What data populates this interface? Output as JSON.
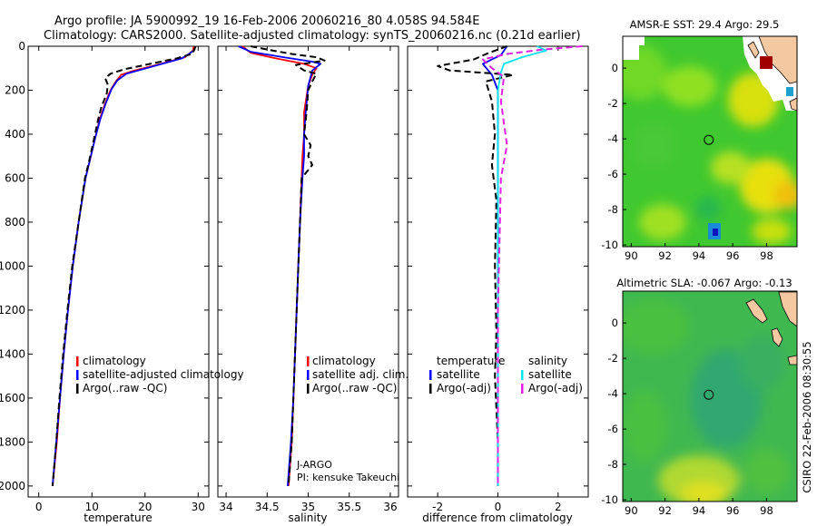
{
  "header": {
    "title_line1": "Argo profile: JA 5900992_19 16-Feb-2006 20060216_80 4.058S 94.584E",
    "title_line2": "Climatology: CARS2000. Satellite-adjusted climatology: synTS_20060216.nc (0.21d earlier)"
  },
  "footer": {
    "credit": "CSIRO 22-Feb-2006 08:30:55"
  },
  "colors": {
    "climatology": "#ff0000",
    "satellite": "#0000ff",
    "argo": "#000000",
    "satellite_sal": "#00e5ee",
    "argo_sal": "#e020e0",
    "land": "#f4c8a0"
  },
  "chart_data": [
    {
      "type": "line",
      "name": "temperature-profile",
      "xlabel": "temperature",
      "ylabel": "",
      "xlim": [
        -2,
        32
      ],
      "ylim": [
        2050,
        0
      ],
      "xticks": [
        0,
        10,
        20,
        30
      ],
      "yticks": [
        0,
        200,
        400,
        600,
        800,
        1000,
        1200,
        1400,
        1600,
        1800,
        2000
      ],
      "legend": [
        "climatology",
        "satellite-adjusted climatology",
        "Argo(..raw -QC)"
      ],
      "series": [
        {
          "name": "climatology",
          "style": "solid",
          "points": [
            [
              29.2,
              0
            ],
            [
              29.0,
              20
            ],
            [
              27.5,
              50
            ],
            [
              23,
              80
            ],
            [
              18,
              110
            ],
            [
              15.5,
              130
            ],
            [
              14.5,
              160
            ],
            [
              13.5,
              200
            ],
            [
              12.5,
              260
            ],
            [
              11.5,
              330
            ],
            [
              10.6,
              420
            ],
            [
              9.6,
              520
            ],
            [
              8.8,
              600
            ],
            [
              7.5,
              800
            ],
            [
              6.4,
              1000
            ],
            [
              5.5,
              1200
            ],
            [
              4.7,
              1400
            ],
            [
              4.0,
              1600
            ],
            [
              3.4,
              1800
            ],
            [
              2.6,
              2000
            ]
          ]
        },
        {
          "name": "satellite-adjusted climatology",
          "style": "solid",
          "points": [
            [
              29.5,
              0
            ],
            [
              29.2,
              20
            ],
            [
              27.0,
              55
            ],
            [
              21,
              95
            ],
            [
              16.5,
              125
            ],
            [
              14.8,
              155
            ],
            [
              13.7,
              195
            ],
            [
              12.6,
              260
            ],
            [
              11.6,
              330
            ],
            [
              10.6,
              420
            ],
            [
              9.6,
              520
            ],
            [
              8.8,
              600
            ],
            [
              7.5,
              800
            ],
            [
              6.4,
              1000
            ],
            [
              5.5,
              1200
            ],
            [
              4.7,
              1400
            ],
            [
              4.0,
              1600
            ],
            [
              3.3,
              1800
            ],
            [
              2.6,
              2000
            ]
          ]
        },
        {
          "name": "Argo",
          "style": "dashed",
          "points": [
            [
              29.5,
              0
            ],
            [
              29.3,
              15
            ],
            [
              28.8,
              35
            ],
            [
              26,
              55
            ],
            [
              21,
              80
            ],
            [
              16,
              105
            ],
            [
              13.5,
              125
            ],
            [
              12.5,
              145
            ],
            [
              13.0,
              175
            ],
            [
              12.8,
              215
            ],
            [
              11.8,
              275
            ],
            [
              11.2,
              330
            ],
            [
              10.4,
              420
            ],
            [
              9.5,
              520
            ],
            [
              8.7,
              600
            ],
            [
              7.5,
              800
            ],
            [
              6.3,
              1000
            ],
            [
              5.4,
              1200
            ],
            [
              4.6,
              1400
            ],
            [
              3.9,
              1600
            ],
            [
              3.3,
              1800
            ],
            [
              2.6,
              2000
            ]
          ]
        }
      ]
    },
    {
      "type": "line",
      "name": "salinity-profile",
      "xlabel": "salinity",
      "xlim": [
        33.9,
        36.1
      ],
      "ylim": [
        2050,
        0
      ],
      "xticks": [
        34,
        34.5,
        35,
        35.5,
        36
      ],
      "legend": [
        "climatology",
        "satellite adj. clim.",
        "Argo(..raw -QC)"
      ],
      "annotation": [
        "J-ARGO",
        "PI: kensuke Takeuchi"
      ],
      "series": [
        {
          "name": "climatology",
          "style": "solid",
          "points": [
            [
              34.2,
              0
            ],
            [
              34.3,
              30
            ],
            [
              34.6,
              55
            ],
            [
              34.95,
              80
            ],
            [
              35.1,
              100
            ],
            [
              35.05,
              130
            ],
            [
              35.0,
              180
            ],
            [
              34.95,
              300
            ],
            [
              34.95,
              400
            ],
            [
              34.93,
              500
            ],
            [
              34.92,
              600
            ],
            [
              34.9,
              800
            ],
            [
              34.88,
              1000
            ],
            [
              34.86,
              1200
            ],
            [
              34.84,
              1400
            ],
            [
              34.82,
              1600
            ],
            [
              34.8,
              1800
            ],
            [
              34.76,
              2000
            ]
          ]
        },
        {
          "name": "satellite adj. clim.",
          "style": "solid",
          "points": [
            [
              34.15,
              0
            ],
            [
              34.3,
              25
            ],
            [
              34.7,
              50
            ],
            [
              35.05,
              70
            ],
            [
              35.15,
              80
            ],
            [
              35.05,
              110
            ],
            [
              35.0,
              180
            ],
            [
              34.97,
              300
            ],
            [
              34.95,
              400
            ],
            [
              34.95,
              500
            ],
            [
              34.93,
              600
            ],
            [
              34.9,
              800
            ],
            [
              34.88,
              1000
            ],
            [
              34.86,
              1200
            ],
            [
              34.84,
              1400
            ],
            [
              34.82,
              1600
            ],
            [
              34.79,
              1800
            ],
            [
              34.75,
              2000
            ]
          ]
        },
        {
          "name": "Argo",
          "style": "dashed",
          "points": [
            [
              34.3,
              0
            ],
            [
              34.5,
              15
            ],
            [
              34.8,
              35
            ],
            [
              35.1,
              50
            ],
            [
              35.2,
              65
            ],
            [
              34.85,
              85
            ],
            [
              34.95,
              110
            ],
            [
              35.1,
              125
            ],
            [
              35.05,
              160
            ],
            [
              35.0,
              200
            ],
            [
              34.98,
              300
            ],
            [
              34.95,
              400
            ],
            [
              35.03,
              450
            ],
            [
              35.0,
              500
            ],
            [
              35.05,
              540
            ],
            [
              34.92,
              600
            ],
            [
              34.9,
              800
            ],
            [
              34.88,
              1000
            ],
            [
              34.86,
              1200
            ],
            [
              34.84,
              1400
            ],
            [
              34.82,
              1600
            ],
            [
              34.8,
              1800
            ],
            [
              34.76,
              2000
            ]
          ]
        }
      ]
    },
    {
      "type": "line",
      "name": "difference-profile",
      "xlabel": "difference from climatology",
      "xlim": [
        -3,
        3
      ],
      "ylim": [
        2050,
        0
      ],
      "xticks": [
        -2,
        0,
        2
      ],
      "legend": {
        "temperature_heading": "temperature",
        "salinity_heading": "salinity",
        "temperature_items": [
          "satellite",
          "Argo(-adj)"
        ],
        "salinity_items": [
          "satellite",
          "Argo(-adj)"
        ]
      },
      "series": [
        {
          "name": "temperature satellite",
          "style": "solid",
          "color": "#0000ff",
          "points": [
            [
              0.3,
              0
            ],
            [
              0.1,
              40
            ],
            [
              -0.5,
              80
            ],
            [
              -0.2,
              130
            ],
            [
              0.0,
              200
            ],
            [
              0.0,
              400
            ],
            [
              0.0,
              800
            ],
            [
              0.0,
              1200
            ],
            [
              0.0,
              1600
            ],
            [
              0.0,
              2000
            ]
          ]
        },
        {
          "name": "temperature Argo(-adj)",
          "style": "dashed",
          "color": "#000000",
          "points": [
            [
              0.3,
              0
            ],
            [
              -0.3,
              30
            ],
            [
              -0.8,
              60
            ],
            [
              -2.0,
              90
            ],
            [
              -1.6,
              110
            ],
            [
              0.5,
              130
            ],
            [
              -0.4,
              160
            ],
            [
              -0.2,
              250
            ],
            [
              -0.1,
              400
            ],
            [
              -0.2,
              540
            ],
            [
              -0.05,
              700
            ],
            [
              -0.1,
              1000
            ],
            [
              -0.05,
              1300
            ],
            [
              -0.1,
              1500
            ],
            [
              0.0,
              1800
            ],
            [
              0.0,
              2000
            ]
          ]
        },
        {
          "name": "salinity satellite",
          "style": "solid",
          "color": "#00e5ee",
          "points": [
            [
              1.3,
              0
            ],
            [
              1.6,
              20
            ],
            [
              0.8,
              50
            ],
            [
              0.2,
              80
            ],
            [
              0.1,
              120
            ],
            [
              0.0,
              200
            ],
            [
              0.0,
              400
            ],
            [
              0.0,
              800
            ],
            [
              0.0,
              1200
            ],
            [
              0.0,
              1600
            ],
            [
              0.0,
              2000
            ]
          ]
        },
        {
          "name": "salinity Argo(-adj)",
          "style": "dashed",
          "color": "#e020e0",
          "points": [
            [
              2.8,
              0
            ],
            [
              1.5,
              15
            ],
            [
              0.3,
              35
            ],
            [
              -0.5,
              60
            ],
            [
              -0.2,
              100
            ],
            [
              0.2,
              140
            ],
            [
              0.1,
              250
            ],
            [
              0.3,
              450
            ],
            [
              0.1,
              600
            ],
            [
              0.05,
              900
            ],
            [
              0.0,
              1200
            ],
            [
              0.0,
              1600
            ],
            [
              0.0,
              2000
            ]
          ]
        }
      ]
    },
    {
      "type": "heatmap",
      "name": "sst-map",
      "title": "AMSR-E SST: 29.4 Argo: 29.5",
      "xlim": [
        89.5,
        99.8
      ],
      "ylim": [
        -10.1,
        1.8
      ],
      "xticks": [
        90,
        92,
        94,
        96,
        98
      ],
      "yticks": [
        0,
        -2,
        -4,
        -6,
        -8,
        -10
      ],
      "marker": {
        "lon": 94.584,
        "lat": -4.058
      }
    },
    {
      "type": "heatmap",
      "name": "sla-map",
      "title": "Altimetric SLA: -0.067 Argo: -0.13",
      "xlim": [
        89.5,
        99.8
      ],
      "ylim": [
        -10.1,
        1.8
      ],
      "xticks": [
        90,
        92,
        94,
        96,
        98
      ],
      "yticks": [
        0,
        -2,
        -4,
        -6,
        -8,
        -10
      ],
      "marker": {
        "lon": 94.584,
        "lat": -4.058
      }
    }
  ]
}
